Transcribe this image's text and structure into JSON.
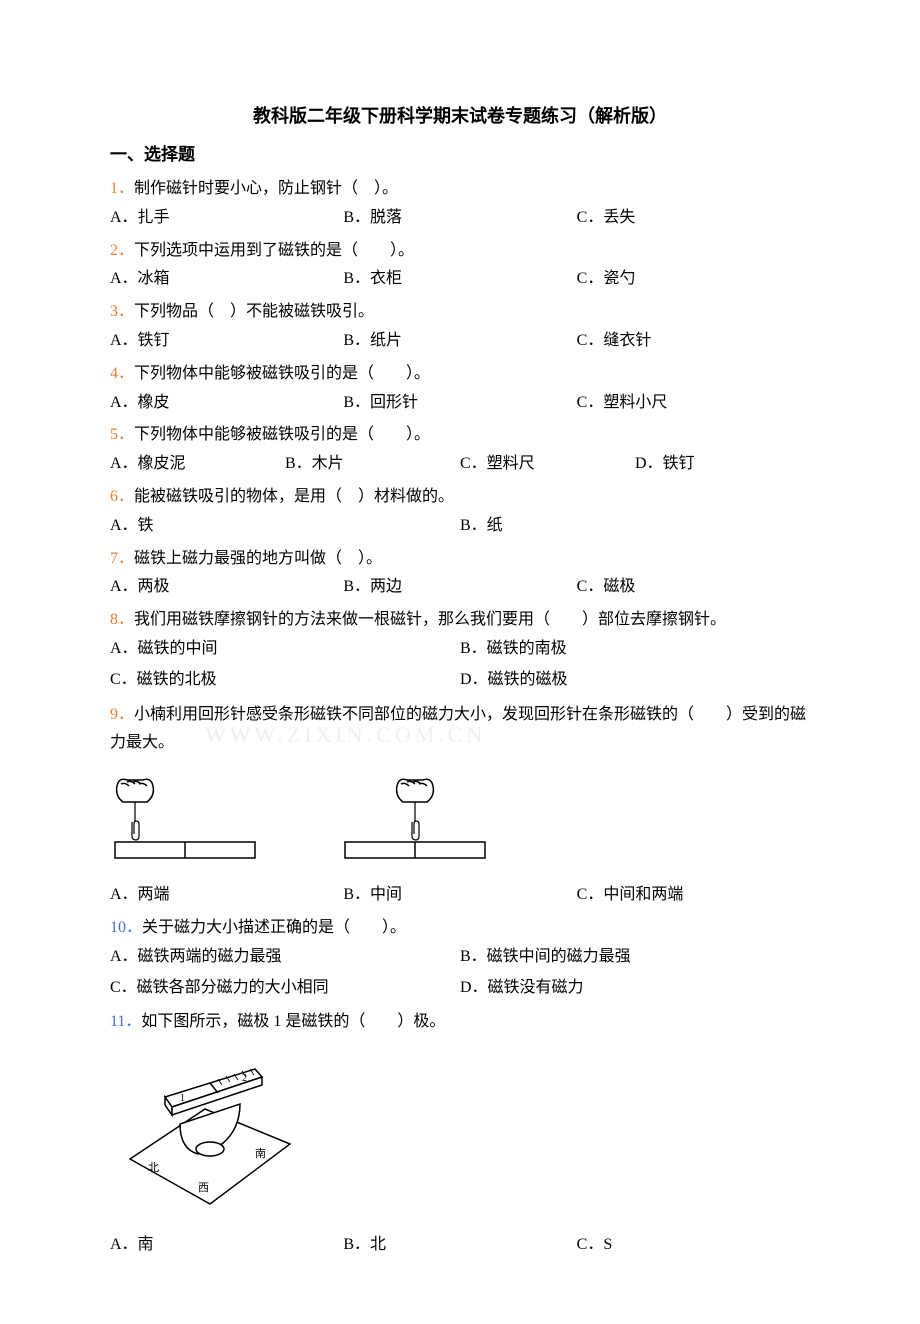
{
  "title": "教科版二年级下册科学期末试卷专题练习（解析版）",
  "section_header": "一、选择题",
  "questions": [
    {
      "num": "1．",
      "num_color": "#ed7d31",
      "text": "制作磁针时要小心，防止钢针（　）。",
      "options": [
        {
          "label": "A．扎手"
        },
        {
          "label": "B．脱落"
        },
        {
          "label": "C．丢失"
        }
      ],
      "layout": "3col"
    },
    {
      "num": "2．",
      "num_color": "#ed7d31",
      "text": "下列选项中运用到了磁铁的是（　　）。",
      "options": [
        {
          "label": "A．冰箱"
        },
        {
          "label": "B．衣柜"
        },
        {
          "label": "C．瓷勺"
        }
      ],
      "layout": "3col"
    },
    {
      "num": "3．",
      "num_color": "#ed7d31",
      "text": "下列物品（　）不能被磁铁吸引。",
      "options": [
        {
          "label": "A．铁钉"
        },
        {
          "label": "B．纸片"
        },
        {
          "label": "C．缝衣针"
        }
      ],
      "layout": "3col"
    },
    {
      "num": "4．",
      "num_color": "#ed7d31",
      "text": "下列物体中能够被磁铁吸引的是（　　）。",
      "options": [
        {
          "label": "A．橡皮"
        },
        {
          "label": "B．回形针"
        },
        {
          "label": "C．塑料小尺"
        }
      ],
      "layout": "3col"
    },
    {
      "num": "5．",
      "num_color": "#ed7d31",
      "text": "下列物体中能够被磁铁吸引的是（　　）。",
      "options": [
        {
          "label": "A．橡皮泥"
        },
        {
          "label": "B．木片"
        },
        {
          "label": "C．塑料尺"
        },
        {
          "label": "D．铁钉"
        }
      ],
      "layout": "4col"
    },
    {
      "num": "6．",
      "num_color": "#ed7d31",
      "text": "能被磁铁吸引的物体，是用（　）材料做的。",
      "options": [
        {
          "label": "A．铁"
        },
        {
          "label": "B．纸"
        }
      ],
      "layout": "2col-half"
    },
    {
      "num": "7．",
      "num_color": "#ed7d31",
      "text": "磁铁上磁力最强的地方叫做（　）。",
      "options": [
        {
          "label": "A．两极"
        },
        {
          "label": "B．两边"
        },
        {
          "label": "C．磁极"
        }
      ],
      "layout": "3col"
    },
    {
      "num": "8．",
      "num_color": "#ed7d31",
      "text": "我们用磁铁摩擦钢针的方法来做一根磁针，那么我们要用（　　）部位去摩擦钢针。",
      "options": [
        {
          "label": "A．磁铁的中间"
        },
        {
          "label": "B．磁铁的南极"
        },
        {
          "label": "C．磁铁的北极"
        },
        {
          "label": "D．磁铁的磁极"
        }
      ],
      "layout": "2x2"
    },
    {
      "num": "9．",
      "num_color": "#ed7d31",
      "text": "小楠利用回形针感受条形磁铁不同部位的磁力大小，发现回形针在条形磁铁的（　　）受到的磁力最大。",
      "has_images": true,
      "options": [
        {
          "label": "A．两端"
        },
        {
          "label": "B．中间"
        },
        {
          "label": "C．中间和两端"
        }
      ],
      "layout": "3col"
    },
    {
      "num": "10．",
      "num_color": "#4472c4",
      "text": "关于磁力大小描述正确的是（　　）。",
      "options": [
        {
          "label": "A．磁铁两端的磁力最强"
        },
        {
          "label": "B．磁铁中间的磁力最强"
        },
        {
          "label": "C．磁铁各部分磁力的大小相同"
        },
        {
          "label": "D．磁铁没有磁力"
        }
      ],
      "layout": "2x2"
    },
    {
      "num": "11．",
      "num_color": "#4472c4",
      "text": "如下图所示，磁极 1 是磁铁的（　　）极。",
      "has_compass": true,
      "options": [
        {
          "label": "A．南"
        },
        {
          "label": "B．北"
        },
        {
          "label": "C．S"
        }
      ],
      "layout": "3col"
    }
  ],
  "watermark": "WWW.ZIXIN.COM.CN",
  "colors": {
    "orange": "#ed7d31",
    "blue": "#4472c4",
    "text": "#000000",
    "background": "#ffffff"
  }
}
